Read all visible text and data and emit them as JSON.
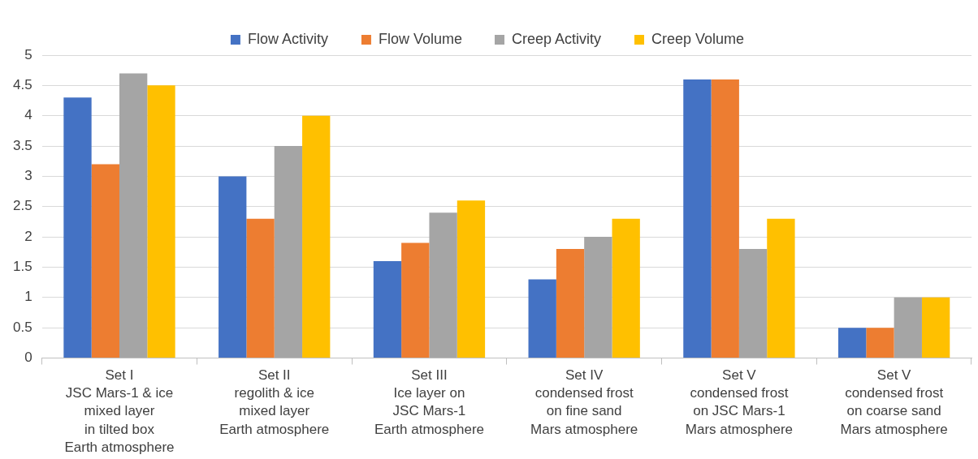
{
  "chart_data": {
    "type": "bar",
    "categories": [
      "Set I\nJSC Mars-1 & ice\nmixed layer\nin tilted box\nEarth atmosphere",
      "Set II\nregolith & ice\nmixed layer\nEarth atmosphere",
      "Set III\nIce layer on\nJSC Mars-1\nEarth atmosphere",
      "Set IV\ncondensed frost\non fine sand\nMars atmosphere",
      "Set V\ncondensed frost\non JSC Mars-1\nMars atmosphere",
      "Set V\ncondensed frost\non coarse sand\nMars atmosphere"
    ],
    "series": [
      {
        "name": "Flow Activity",
        "color": "#4472c4",
        "values": [
          4.3,
          3,
          1.6,
          1.3,
          4.6,
          0.5
        ]
      },
      {
        "name": "Flow Volume",
        "color": "#ed7d31",
        "values": [
          3.2,
          2.3,
          1.9,
          1.8,
          4.6,
          0.5
        ]
      },
      {
        "name": "Creep Activity",
        "color": "#a5a5a5",
        "values": [
          4.7,
          3.5,
          2.4,
          2,
          1.8,
          1
        ]
      },
      {
        "name": "Creep Volume",
        "color": "#ffc000",
        "values": [
          4.5,
          4,
          2.6,
          2.3,
          2.3,
          1
        ]
      }
    ],
    "ylim": [
      0,
      5
    ],
    "yticks": [
      0,
      0.5,
      1,
      1.5,
      2,
      2.5,
      3,
      3.5,
      4,
      4.5,
      5
    ],
    "grid": "y",
    "legend": "top"
  }
}
